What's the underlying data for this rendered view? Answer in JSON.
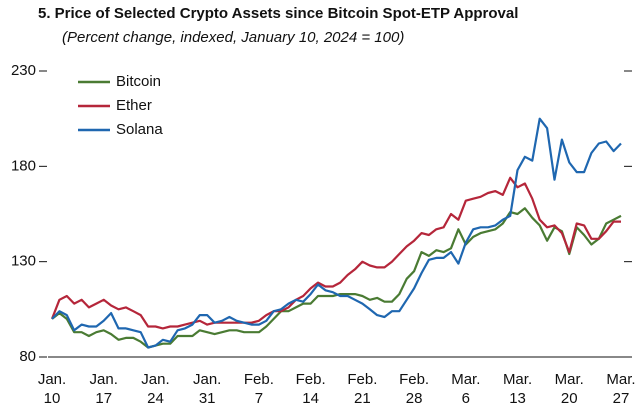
{
  "chart_data": {
    "type": "line",
    "title": "5. Price of Selected Crypto Assets since Bitcoin Spot-ETP Approval",
    "subtitle": "(Percent change, indexed, January 10, 2024 = 100)",
    "categories": [
      "Jan.\n10",
      null,
      null,
      null,
      null,
      null,
      null,
      "Jan.\n17",
      null,
      null,
      null,
      null,
      null,
      null,
      "Jan.\n24",
      null,
      null,
      null,
      null,
      null,
      null,
      "Jan.\n31",
      null,
      null,
      null,
      null,
      null,
      null,
      "Feb.\n7",
      null,
      null,
      null,
      null,
      null,
      null,
      "Feb.\n14",
      null,
      null,
      null,
      null,
      null,
      null,
      "Feb.\n21",
      null,
      null,
      null,
      null,
      null,
      null,
      "Feb.\n28",
      null,
      null,
      null,
      null,
      null,
      null,
      "Mar.\n6",
      null,
      null,
      null,
      null,
      null,
      null,
      "Mar.\n13",
      null,
      null,
      null,
      null,
      null,
      null,
      "Mar.\n20",
      null,
      null,
      null,
      null,
      null,
      null,
      "Mar.\n27"
    ],
    "series": [
      {
        "name": "Bitcoin",
        "color": "#4a7b33",
        "values": [
          100,
          103,
          100,
          93,
          93,
          91,
          93,
          94,
          92,
          89,
          90,
          90,
          88,
          85,
          86,
          87,
          87,
          91,
          91,
          91,
          94,
          93,
          92,
          93,
          94,
          94,
          93,
          93,
          93,
          96,
          100,
          104,
          104,
          106,
          108,
          108,
          112,
          112,
          112,
          113,
          113,
          113,
          112,
          110,
          111,
          109,
          109,
          113,
          121,
          125,
          135,
          133,
          136,
          135,
          137,
          147,
          139,
          143,
          145,
          146,
          147,
          150,
          156,
          155,
          158,
          153,
          149,
          141,
          148,
          146,
          134,
          148,
          144,
          139,
          142,
          150,
          152,
          154
        ]
      },
      {
        "name": "Ether",
        "color": "#b5263a",
        "values": [
          100,
          110,
          112,
          108,
          110,
          106,
          108,
          110,
          107,
          105,
          106,
          104,
          102,
          96,
          96,
          95,
          96,
          96,
          97,
          98,
          99,
          97,
          98,
          98,
          98,
          98,
          98,
          98,
          99,
          102,
          104,
          104,
          106,
          110,
          112,
          116,
          119,
          117,
          117,
          119,
          123,
          126,
          130,
          128,
          127,
          127,
          130,
          134,
          138,
          141,
          145,
          144,
          147,
          148,
          155,
          152,
          162,
          163,
          164,
          166,
          167,
          165,
          174,
          169,
          171,
          163,
          152,
          148,
          149,
          145,
          135,
          150,
          149,
          142,
          142,
          146,
          151,
          151
        ]
      },
      {
        "name": "Solana",
        "color": "#1f67b0",
        "values": [
          100,
          104,
          102,
          94,
          97,
          96,
          96,
          99,
          103,
          95,
          95,
          94,
          93,
          85,
          86,
          89,
          88,
          94,
          95,
          97,
          102,
          102,
          98,
          99,
          101,
          99,
          98,
          97,
          97,
          99,
          104,
          105,
          108,
          110,
          109,
          113,
          118,
          115,
          114,
          112,
          112,
          110,
          108,
          105,
          102,
          101,
          104,
          104,
          110,
          116,
          124,
          131,
          132,
          132,
          135,
          129,
          140,
          147,
          148,
          148,
          149,
          152,
          154,
          178,
          185,
          183,
          205,
          200,
          173,
          194,
          182,
          177,
          177,
          187,
          192,
          193,
          188,
          192
        ]
      }
    ],
    "ylim": [
      80,
      230
    ],
    "yticks": [
      80,
      130,
      180,
      230
    ],
    "legend": "upper left"
  }
}
